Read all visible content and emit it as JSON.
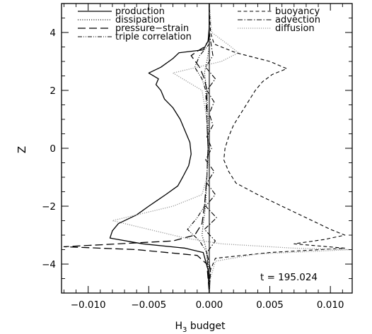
{
  "chart_data": {
    "type": "line",
    "title": "",
    "xlabel": "H",
    "xlabel_sub": "3",
    "xlabel_rest": " budget",
    "ylabel": "Z",
    "xlim": [
      -0.0122,
      0.0118
    ],
    "ylim": [
      -5,
      5
    ],
    "x_ticks": [
      -0.01,
      -0.005,
      0.0,
      0.005,
      0.01
    ],
    "x_tick_labels": [
      "−0.010",
      "−0.005",
      "0.000",
      "0.005",
      "0.010"
    ],
    "y_ticks": [
      -4,
      -2,
      0,
      2,
      4
    ],
    "y_tick_labels": [
      "−4",
      "−2",
      "0",
      "2",
      "4"
    ],
    "grid": false,
    "legend_placement": "top",
    "annotation": "t = 195.024",
    "series": [
      {
        "name": "production",
        "style": "solid",
        "color": "#000000",
        "points": [
          [
            0.0,
            5.0
          ],
          [
            0.0,
            4.2
          ],
          [
            -0.0001,
            3.7
          ],
          [
            -0.0005,
            3.4
          ],
          [
            -0.0025,
            3.3
          ],
          [
            -0.003,
            3.1
          ],
          [
            -0.004,
            2.8
          ],
          [
            -0.005,
            2.6
          ],
          [
            -0.0042,
            2.4
          ],
          [
            -0.0044,
            2.2
          ],
          [
            -0.004,
            2.0
          ],
          [
            -0.0037,
            1.7
          ],
          [
            -0.003,
            1.4
          ],
          [
            -0.0024,
            1.0
          ],
          [
            -0.002,
            0.6
          ],
          [
            -0.0016,
            0.2
          ],
          [
            -0.0015,
            -0.2
          ],
          [
            -0.0017,
            -0.6
          ],
          [
            -0.0022,
            -1.0
          ],
          [
            -0.0026,
            -1.3
          ],
          [
            -0.0036,
            -1.6
          ],
          [
            -0.0043,
            -1.8
          ],
          [
            -0.005,
            -2.0
          ],
          [
            -0.006,
            -2.3
          ],
          [
            -0.0075,
            -2.6
          ],
          [
            -0.008,
            -2.85
          ],
          [
            -0.0082,
            -3.1
          ],
          [
            -0.0055,
            -3.3
          ],
          [
            -0.002,
            -3.45
          ],
          [
            -0.0005,
            -3.6
          ],
          [
            -0.0001,
            -4.2
          ],
          [
            0.0,
            -5.0
          ]
        ]
      },
      {
        "name": "dissipation",
        "style": "dotted",
        "color": "#000000",
        "points": [
          [
            0.0,
            5.0
          ],
          [
            0.0,
            3.5
          ],
          [
            -0.0002,
            3.0
          ],
          [
            -0.0004,
            2.6
          ],
          [
            -0.0002,
            2.0
          ],
          [
            -0.0001,
            1.0
          ],
          [
            -0.0001,
            0.0
          ],
          [
            -0.0002,
            -1.0
          ],
          [
            -0.0003,
            -2.0
          ],
          [
            -0.0005,
            -2.6
          ],
          [
            -0.0006,
            -3.0
          ],
          [
            -0.0003,
            -3.4
          ],
          [
            -0.0001,
            -4.0
          ],
          [
            0.0,
            -5.0
          ]
        ]
      },
      {
        "name": "pressure−strain",
        "style": "dashed",
        "color": "#000000",
        "points": [
          [
            0.0,
            5.0
          ],
          [
            0.0,
            3.9
          ],
          [
            -0.0001,
            3.7
          ],
          [
            -0.0004,
            3.5
          ],
          [
            -0.001,
            3.35
          ],
          [
            -0.0015,
            3.2
          ],
          [
            -0.0008,
            2.8
          ],
          [
            -0.0004,
            2.4
          ],
          [
            -0.0002,
            2.0
          ],
          [
            -0.0002,
            1.0
          ],
          [
            -0.0001,
            0.0
          ],
          [
            -0.0002,
            -1.0
          ],
          [
            -0.0004,
            -2.0
          ],
          [
            -0.0006,
            -2.6
          ],
          [
            -0.0012,
            -3.0
          ],
          [
            -0.003,
            -3.2
          ],
          [
            -0.012,
            -3.4
          ],
          [
            -0.006,
            -3.5
          ],
          [
            -0.001,
            -3.7
          ],
          [
            -0.0002,
            -4.0
          ],
          [
            0.0,
            -5.0
          ]
        ]
      },
      {
        "name": "triple correlation",
        "style": "dash-dot-dot",
        "color": "#000000",
        "points": [
          [
            0.0,
            5.0
          ],
          [
            0.0,
            3.6
          ],
          [
            -0.0008,
            3.2
          ],
          [
            -0.0012,
            2.8
          ],
          [
            -0.0006,
            2.4
          ],
          [
            -0.0003,
            2.0
          ],
          [
            -0.0002,
            1.0
          ],
          [
            -0.0001,
            0.0
          ],
          [
            -0.0002,
            -1.0
          ],
          [
            -0.0004,
            -2.0
          ],
          [
            -0.001,
            -2.4
          ],
          [
            -0.0018,
            -2.8
          ],
          [
            -0.0008,
            -3.2
          ],
          [
            -0.0002,
            -3.6
          ],
          [
            0.0,
            -5.0
          ]
        ]
      },
      {
        "name": "buoyancy",
        "style": "short-dash",
        "color": "#000000",
        "points": [
          [
            0.0,
            5.0
          ],
          [
            0.0001,
            4.0
          ],
          [
            0.0004,
            3.6
          ],
          [
            0.0022,
            3.3
          ],
          [
            0.005,
            3.0
          ],
          [
            0.0064,
            2.75
          ],
          [
            0.0052,
            2.55
          ],
          [
            0.0044,
            2.3
          ],
          [
            0.0038,
            2.0
          ],
          [
            0.0032,
            1.6
          ],
          [
            0.0026,
            1.2
          ],
          [
            0.002,
            0.8
          ],
          [
            0.0016,
            0.4
          ],
          [
            0.0013,
            0.0
          ],
          [
            0.0012,
            -0.4
          ],
          [
            0.0016,
            -0.8
          ],
          [
            0.0022,
            -1.2
          ],
          [
            0.004,
            -1.6
          ],
          [
            0.006,
            -2.0
          ],
          [
            0.008,
            -2.4
          ],
          [
            0.01,
            -2.8
          ],
          [
            0.0112,
            -3.0
          ],
          [
            0.0095,
            -3.15
          ],
          [
            0.007,
            -3.3
          ],
          [
            0.0112,
            -3.45
          ],
          [
            0.005,
            -3.6
          ],
          [
            0.0005,
            -3.8
          ],
          [
            0.0001,
            -4.2
          ],
          [
            0.0,
            -5.0
          ]
        ]
      },
      {
        "name": "advection",
        "style": "dash-dot",
        "color": "#000000",
        "points": [
          [
            0.0,
            5.0
          ],
          [
            0.0,
            4.0
          ],
          [
            0.0003,
            3.2
          ],
          [
            -0.0003,
            2.8
          ],
          [
            0.0005,
            2.4
          ],
          [
            -0.0002,
            2.0
          ],
          [
            0.0004,
            1.6
          ],
          [
            0.0,
            1.2
          ],
          [
            0.0003,
            0.8
          ],
          [
            -0.0002,
            0.4
          ],
          [
            0.0002,
            0.0
          ],
          [
            -0.0003,
            -0.4
          ],
          [
            0.0004,
            -0.8
          ],
          [
            -0.0002,
            -1.2
          ],
          [
            0.0005,
            -1.6
          ],
          [
            -0.0003,
            -2.0
          ],
          [
            0.0006,
            -2.4
          ],
          [
            -0.0004,
            -2.8
          ],
          [
            0.0005,
            -3.2
          ],
          [
            -0.0002,
            -3.6
          ],
          [
            0.0001,
            -4.2
          ],
          [
            0.0,
            -5.0
          ]
        ]
      },
      {
        "name": "diffusion",
        "style": "dotted-gray",
        "color": "#9a9a9a",
        "points": [
          [
            0.0,
            5.0
          ],
          [
            0.0002,
            4.0
          ],
          [
            0.0015,
            3.6
          ],
          [
            0.0024,
            3.3
          ],
          [
            0.001,
            3.0
          ],
          [
            -0.001,
            2.8
          ],
          [
            -0.003,
            2.6
          ],
          [
            -0.0018,
            2.3
          ],
          [
            -0.0006,
            2.0
          ],
          [
            -0.0004,
            1.5
          ],
          [
            -0.0002,
            1.0
          ],
          [
            0.0,
            0.0
          ],
          [
            -0.0002,
            -1.0
          ],
          [
            -0.0006,
            -1.6
          ],
          [
            -0.003,
            -2.0
          ],
          [
            -0.006,
            -2.3
          ],
          [
            -0.008,
            -2.5
          ],
          [
            -0.005,
            -2.8
          ],
          [
            -0.002,
            -3.1
          ],
          [
            0.001,
            -3.3
          ],
          [
            0.007,
            -3.45
          ],
          [
            0.0116,
            -3.5
          ],
          [
            0.004,
            -3.65
          ],
          [
            0.0005,
            -3.9
          ],
          [
            0.0001,
            -4.5
          ],
          [
            0.0,
            -5.0
          ]
        ]
      }
    ]
  }
}
